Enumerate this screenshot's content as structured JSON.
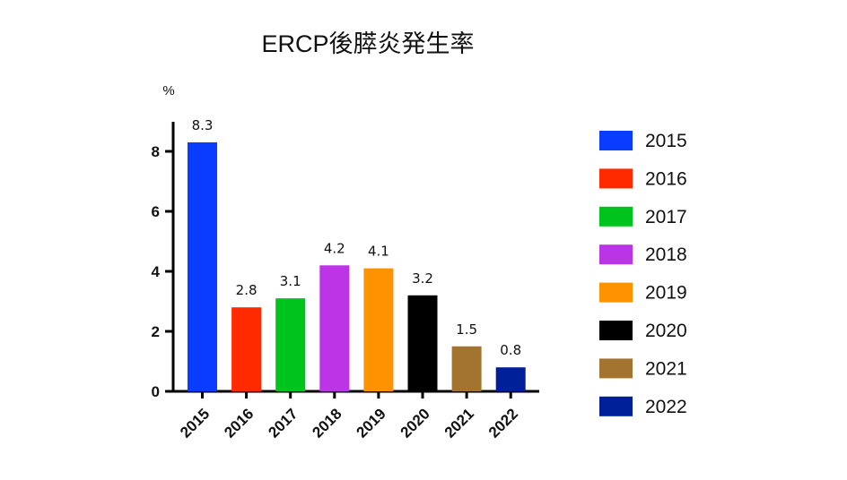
{
  "chart_data": {
    "type": "bar",
    "title": "ERCP後膵炎発生率",
    "ylabel": "%",
    "xlabel": "",
    "ylim": [
      0,
      9
    ],
    "yticks": [
      0,
      2,
      4,
      6,
      8
    ],
    "grid": false,
    "legend_position": "right",
    "categories": [
      "2015",
      "2016",
      "2017",
      "2018",
      "2019",
      "2020",
      "2021",
      "2022"
    ],
    "values": [
      8.3,
      2.8,
      3.1,
      4.2,
      4.1,
      3.2,
      1.5,
      0.8
    ],
    "data_labels": [
      "8.3",
      "2.8",
      "3.1",
      "4.2",
      "4.1",
      "3.2",
      "1.5",
      "0.8"
    ],
    "colors": [
      "#0a3cff",
      "#ff2a00",
      "#00c41e",
      "#bb35e6",
      "#ff9200",
      "#000000",
      "#a3742f",
      "#00209a"
    ],
    "legend": [
      "2015",
      "2016",
      "2017",
      "2018",
      "2019",
      "2020",
      "2021",
      "2022"
    ]
  }
}
